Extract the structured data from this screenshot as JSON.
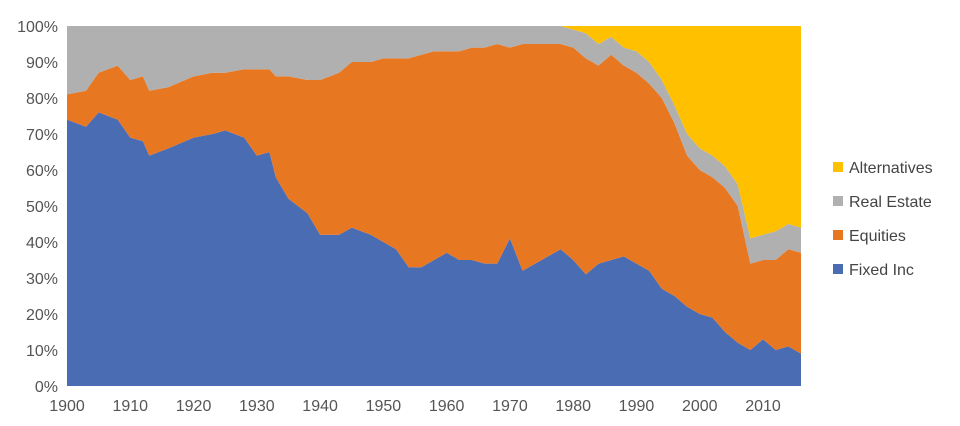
{
  "chart_data": {
    "type": "area",
    "stacked": true,
    "normalized": true,
    "xlim": [
      1900,
      2016
    ],
    "ylim": [
      0,
      100
    ],
    "x_ticks": [
      1900,
      1910,
      1920,
      1930,
      1940,
      1950,
      1960,
      1970,
      1980,
      1990,
      2000,
      2010
    ],
    "y_ticks": [
      0,
      10,
      20,
      30,
      40,
      50,
      60,
      70,
      80,
      90,
      100
    ],
    "y_tick_labels": [
      "0%",
      "10%",
      "20%",
      "30%",
      "40%",
      "50%",
      "60%",
      "70%",
      "80%",
      "90%",
      "100%"
    ],
    "grid": false,
    "legend_position": "right",
    "x": [
      1900,
      1903,
      1905,
      1908,
      1910,
      1912,
      1913,
      1916,
      1920,
      1923,
      1925,
      1928,
      1930,
      1932,
      1933,
      1935,
      1938,
      1940,
      1943,
      1945,
      1948,
      1950,
      1952,
      1954,
      1956,
      1958,
      1960,
      1962,
      1964,
      1966,
      1968,
      1970,
      1972,
      1975,
      1978,
      1980,
      1982,
      1984,
      1986,
      1988,
      1990,
      1992,
      1994,
      1996,
      1998,
      2000,
      2002,
      2004,
      2006,
      2008,
      2010,
      2012,
      2014,
      2016
    ],
    "series": [
      {
        "name": "Fixed Inc",
        "color": "#4a6cb3",
        "values": [
          74,
          72,
          76,
          74,
          69,
          68,
          64,
          66,
          69,
          70,
          71,
          69,
          64,
          65,
          58,
          52,
          48,
          42,
          42,
          44,
          42,
          40,
          38,
          33,
          33,
          35,
          37,
          35,
          35,
          34,
          34,
          41,
          32,
          35,
          38,
          35,
          31,
          34,
          35,
          36,
          34,
          32,
          27,
          25,
          22,
          20,
          19,
          15,
          12,
          10,
          13,
          10,
          11,
          9
        ]
      },
      {
        "name": "Equities",
        "color": "#e87722",
        "values": [
          7,
          10,
          11,
          15,
          16,
          18,
          18,
          17,
          17,
          17,
          16,
          19,
          24,
          23,
          28,
          34,
          37,
          43,
          45,
          46,
          48,
          51,
          53,
          58,
          59,
          58,
          56,
          58,
          59,
          60,
          61,
          53,
          63,
          60,
          57,
          59,
          60,
          55,
          57,
          53,
          53,
          52,
          53,
          48,
          42,
          40,
          39,
          40,
          38,
          24,
          22,
          25,
          27,
          28
        ]
      },
      {
        "name": "Real Estate",
        "color": "#b0b0b0",
        "values": [
          19,
          18,
          13,
          11,
          15,
          14,
          18,
          17,
          14,
          13,
          13,
          12,
          12,
          12,
          14,
          14,
          15,
          15,
          13,
          10,
          10,
          9,
          9,
          9,
          8,
          7,
          7,
          7,
          6,
          6,
          5,
          6,
          5,
          5,
          5,
          5,
          7,
          6,
          5,
          5,
          6,
          6,
          5,
          5,
          6,
          6,
          6,
          6,
          6,
          7,
          7,
          8,
          7,
          7
        ]
      },
      {
        "name": "Alternatives",
        "color": "#ffc000",
        "values": [
          0,
          0,
          0,
          0,
          0,
          0,
          0,
          0,
          0,
          0,
          0,
          0,
          0,
          0,
          0,
          0,
          0,
          0,
          0,
          0,
          0,
          0,
          0,
          0,
          0,
          0,
          0,
          0,
          0,
          0,
          0,
          0,
          0,
          0,
          0,
          1,
          2,
          5,
          3,
          6,
          7,
          10,
          15,
          22,
          30,
          34,
          36,
          39,
          44,
          59,
          58,
          57,
          55,
          56
        ]
      }
    ],
    "legend_order": [
      "Alternatives",
      "Real Estate",
      "Equities",
      "Fixed Inc"
    ]
  }
}
